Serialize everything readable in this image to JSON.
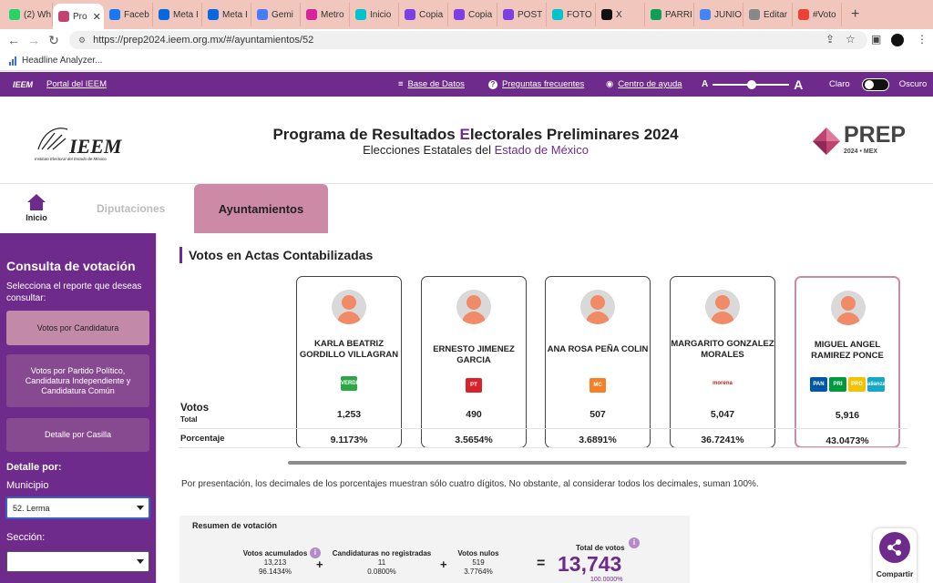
{
  "browser": {
    "tabs": [
      {
        "label": "(2) Wh",
        "icon": "whatsapp-icon",
        "color": "#25d366"
      },
      {
        "label": "Pro",
        "icon": "prep-icon",
        "color": "#c1436f",
        "active": true
      },
      {
        "label": "Faceb",
        "icon": "facebook-icon",
        "color": "#1877f2"
      },
      {
        "label": "Meta I",
        "icon": "meta-icon",
        "color": "#0668e1"
      },
      {
        "label": "Meta I",
        "icon": "meta-icon",
        "color": "#0668e1"
      },
      {
        "label": "Gemi",
        "icon": "gemini-icon",
        "color": "#4a7bf7"
      },
      {
        "label": "Metro",
        "icon": "instagram-icon",
        "color": "#d6249f"
      },
      {
        "label": "Inicio",
        "icon": "canva-icon",
        "color": "#00c4cc"
      },
      {
        "label": "Copia",
        "icon": "copia-icon",
        "color": "#7b3fe4"
      },
      {
        "label": "Copia",
        "icon": "copia-icon",
        "color": "#7b3fe4"
      },
      {
        "label": "POST",
        "icon": "post-icon",
        "color": "#7b3fe4"
      },
      {
        "label": "FOTO",
        "icon": "canva-icon",
        "color": "#00c4cc"
      },
      {
        "label": "X",
        "icon": "x-icon",
        "color": "#111111"
      },
      {
        "label": "PARRI",
        "icon": "sheets-icon",
        "color": "#0f9d58"
      },
      {
        "label": "JUNIO",
        "icon": "docs-icon",
        "color": "#4285f4"
      },
      {
        "label": "Editar",
        "icon": "editar-icon",
        "color": "#888888"
      },
      {
        "label": "#Voto",
        "icon": "gmail-icon",
        "color": "#ea4335"
      }
    ],
    "new_tab": "+",
    "close_tab": "✕",
    "url": "https://prep2024.ieem.org.mx/#/ayuntamientos/52",
    "bookmark": "Headline Analyzer..."
  },
  "topnav": {
    "portal": "Portal del IEEM",
    "base_datos": "Base de Datos",
    "preguntas": "Preguntas frecuentes",
    "ayuda": "Centro de ayuda",
    "font_small": "A",
    "font_large": "A",
    "claro": "Claro",
    "oscuro": "Oscuro"
  },
  "header": {
    "title_pre": "Programa de Resultados ",
    "title_e": "E",
    "title_post": "lectorales Preliminares 2024",
    "subtitle_pre": "Elecciones Estatales del ",
    "subtitle_em": "Estado de México",
    "ieem_logo": "IEEM",
    "ieem_tagline": "Instituto Electoral del Estado de México",
    "prep_logo": "PREP",
    "prep_year": "2024 • MEX"
  },
  "secnav": {
    "inicio": "Inicio",
    "diputaciones": "Diputaciones",
    "ayuntamientos": "Ayuntamientos"
  },
  "sidebar": {
    "title": "Consulta de votación",
    "desc": "Selecciona el reporte que deseas consultar:",
    "btn_candidatura": "Votos por Candidatura",
    "btn_partido": "Votos por Partido Político, Candidatura Independiente y Candidatura Común",
    "btn_casilla": "Detalle por Casilla",
    "detalle_por": "Detalle por:",
    "municipio_label": "Municipio",
    "municipio_value": "52. Lerma",
    "seccion_label": "Sección:",
    "seccion_value": ""
  },
  "main": {
    "section_title": "Votos en Actas Contabilizadas",
    "votos_label": "Votos",
    "total_label": "Total",
    "porcentaje_label": "Porcentaje",
    "candidates": [
      {
        "name": "KARLA BEATRIZ GORDILLO VILLAGRAN",
        "votes": "1,253",
        "pct": "9.1173%",
        "parties": [
          {
            "abbr": "VERDE",
            "color": "#2aa845"
          }
        ]
      },
      {
        "name": "ERNESTO JIMENEZ GARCIA",
        "votes": "490",
        "pct": "3.5654%",
        "parties": [
          {
            "abbr": "PT",
            "color": "#d8232a"
          }
        ]
      },
      {
        "name": "ANA ROSA PEÑA COLIN",
        "votes": "507",
        "pct": "3.6891%",
        "parties": [
          {
            "abbr": "MC",
            "color": "#f58025"
          }
        ]
      },
      {
        "name": "MARGARITO GONZALEZ MORALES",
        "votes": "5,047",
        "pct": "36.7241%",
        "parties": [
          {
            "abbr": "morena",
            "color": "#b5261e"
          }
        ]
      },
      {
        "name": "MIGUEL ANGEL RAMIREZ PONCE",
        "votes": "5,916",
        "pct": "43.0473%",
        "parties": [
          {
            "abbr": "PAN",
            "color": "#0057a4"
          },
          {
            "abbr": "PRI",
            "color": "#009a3e"
          },
          {
            "abbr": "PRD",
            "color": "#f2c300"
          },
          {
            "abbr": "alianza",
            "color": "#16a9c6"
          }
        ]
      }
    ],
    "note": "Por presentación, los decimales de los porcentajes muestran sólo cuatro dígitos. No obstante, al considerar todos los decimales, suman 100%."
  },
  "summary": {
    "title": "Resumen de votación",
    "acumulados_label": "Votos acumulados",
    "acumulados_value": "13,213",
    "acumulados_pct": "96.1434%",
    "no_reg_label": "Candidaturas no registradas",
    "no_reg_value": "11",
    "no_reg_pct": "0.0800%",
    "nulos_label": "Votos nulos",
    "nulos_value": "519",
    "nulos_pct": "3.7764%",
    "plus": "+",
    "equals": "=",
    "info": "i",
    "total_label": "Total de votos",
    "total_value": "13,743",
    "total_pct": "100.0000%"
  },
  "share": {
    "label": "Compartir"
  },
  "colors": {
    "brand_purple": "#6e2b8b",
    "active_pink": "#cd8aa6",
    "sidebar_btn": "#87498f"
  }
}
